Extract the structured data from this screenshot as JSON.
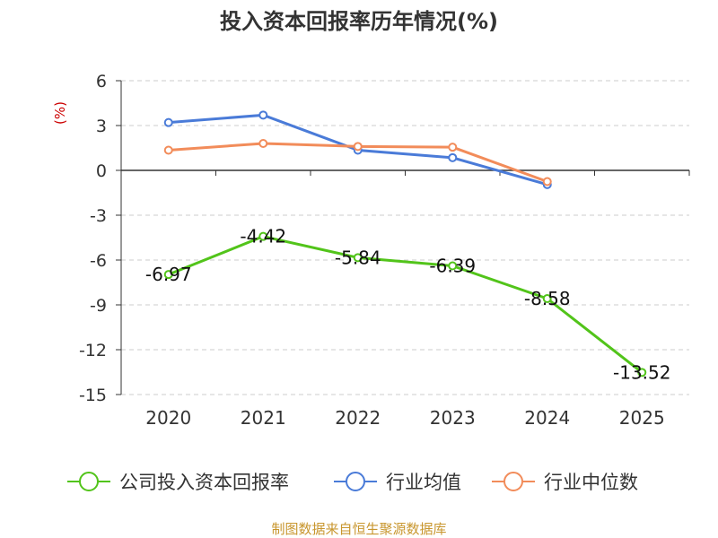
{
  "chart_data": {
    "type": "line",
    "title": "投入资本回报率历年情况(%)",
    "ylabel": "(%)",
    "xlabel": "",
    "x": [
      "2020",
      "2021",
      "2022",
      "2023",
      "2024",
      "2025"
    ],
    "ylim": [
      -15,
      6
    ],
    "yticks": [
      "6",
      "3",
      "0",
      "-3",
      "-6",
      "-9",
      "-12",
      "-15"
    ],
    "grid": true,
    "legend_position": "bottom",
    "series": [
      {
        "name": "公司投入资本回报率",
        "color": "#52c41a",
        "values": [
          -6.97,
          -4.42,
          -5.84,
          -6.39,
          -8.58,
          -13.52
        ],
        "labels": [
          "-6.97",
          "-4.42",
          "-5.84",
          "-6.39",
          "-8.58",
          "-13.52"
        ]
      },
      {
        "name": "行业均值",
        "color": "#4a7bd8",
        "values": [
          3.2,
          3.7,
          1.35,
          0.85,
          -0.95,
          null
        ]
      },
      {
        "name": "行业中位数",
        "color": "#f28c5a",
        "values": [
          1.35,
          1.8,
          1.6,
          1.55,
          -0.75,
          null
        ]
      }
    ]
  },
  "footer": {
    "source": "制图数据来自恒生聚源数据库"
  },
  "colors": {
    "title": "#333333",
    "ylabel": "#cc0000",
    "footer": "#c8962e",
    "axis": "#333333",
    "grid": "#cccccc"
  }
}
